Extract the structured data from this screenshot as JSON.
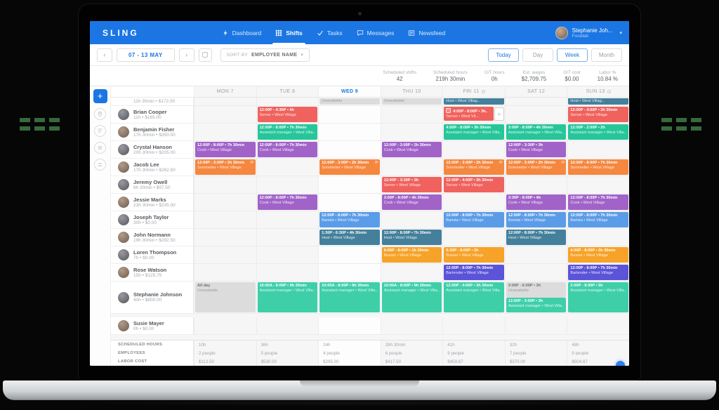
{
  "brand": "SLING",
  "nav": {
    "items": [
      {
        "label": "Dashboard",
        "icon": "dashboard-icon",
        "active": false
      },
      {
        "label": "Shifts",
        "icon": "shifts-icon",
        "active": true
      },
      {
        "label": "Tasks",
        "icon": "tasks-icon",
        "active": false
      },
      {
        "label": "Messages",
        "icon": "messages-icon",
        "active": false
      },
      {
        "label": "Newsfeed",
        "icon": "newsfeed-icon",
        "active": false
      }
    ],
    "user": {
      "name": "Stephanie Joh...",
      "org": "Foodlab"
    }
  },
  "toolbar": {
    "prev": "‹",
    "next": "›",
    "date_range": "07 - 13 MAY",
    "sort_by": "SORT BY",
    "sort_value": "EMPLOYEE NAME",
    "sort_caret": "▾",
    "views": [
      {
        "label": "Today",
        "accent": true,
        "active": false
      },
      {
        "label": "Day",
        "accent": false,
        "active": false
      },
      {
        "label": "Week",
        "accent": true,
        "active": true
      },
      {
        "label": "Month",
        "accent": false,
        "active": false
      }
    ]
  },
  "stats": [
    {
      "label": "Scheduled shifts",
      "value": "42"
    },
    {
      "label": "Scheduled hours",
      "value": "219h 30min"
    },
    {
      "label": "O/T hours",
      "value": "0h"
    },
    {
      "label": "Est. wages",
      "value": "$2,709.75"
    },
    {
      "label": "O/T cost",
      "value": "$0.00"
    },
    {
      "label": "Labor %",
      "value": "10.84 %"
    }
  ],
  "days": [
    {
      "label": "MON 7",
      "active": false,
      "badge": false
    },
    {
      "label": "TUE 8",
      "active": false,
      "badge": false
    },
    {
      "label": "WED 9",
      "active": true,
      "badge": false
    },
    {
      "label": "THU 10",
      "active": false,
      "badge": false
    },
    {
      "label": "FRI 11",
      "active": false,
      "badge": true
    },
    {
      "label": "SAT 12",
      "active": false,
      "badge": false
    },
    {
      "label": "SUN 13",
      "active": false,
      "badge": true
    }
  ],
  "palette": {
    "server": "#f0625d",
    "cook": "#a163c8",
    "sommelier": "#f5873f",
    "barista": "#5b9ce8",
    "host": "#44809b",
    "busser": "#f7a228",
    "bartender": "#5b53d8",
    "manager": "#26c69a",
    "manager_light": "#3ecfa9",
    "unavailable": "#dcdcdc"
  },
  "schedule": {
    "partial_row": {
      "summary": "11h 30min • $172.50",
      "shifts": [
        {
          "day": 2,
          "color": "unavailable",
          "l2": "Unavailable"
        },
        {
          "day": 3,
          "color": "unavailable",
          "l2": "Unavailable"
        },
        {
          "day": 4,
          "color": "host",
          "l2": "Host • West Villag..."
        },
        {
          "day": 6,
          "color": "host",
          "l2": "Host • West Villag..."
        }
      ]
    },
    "employees": [
      {
        "name": "Brian Cooper",
        "sub": "11h • $165.00",
        "shifts": [
          {
            "day": 1,
            "color": "server",
            "l1": "12:00P - 4:30P • 4h",
            "l2": "Server • West Village"
          },
          {
            "day": 4,
            "color": "server",
            "l1": "4:00P - 8:00P • 3h..",
            "l2": "Server • West Vil...",
            "checkbox": true,
            "plus": true
          },
          {
            "day": 6,
            "color": "server",
            "l1": "12:00P - 4:00P • 3h 30min",
            "l2": "Server • West Village"
          }
        ]
      },
      {
        "name": "Benjamin Fisher",
        "sub": "17h 30min • $350.00",
        "shifts": [
          {
            "day": 1,
            "color": "manager",
            "l1": "12:00P - 8:00P • 7h 30min",
            "l2": "Assistant manager • West Villa..."
          },
          {
            "day": 4,
            "color": "manager",
            "l1": "4:00P - 8:00P • 3h 30min",
            "l2": "Assistant manager • West Villa..."
          },
          {
            "day": 5,
            "color": "manager",
            "l1": "3:00P - 8:00P • 4h 30min",
            "l2": "Assistant manager • West Villa..."
          },
          {
            "day": 6,
            "color": "manager",
            "l1": "12:00P - 2:00P • 2h",
            "l2": "Assistant manager • West Villa..."
          }
        ]
      },
      {
        "name": "Crystal Hanson",
        "sub": "20h 30min • $205.00",
        "shifts": [
          {
            "day": 0,
            "color": "cook",
            "l1": "12:00P - 8:00P • 7h 30min",
            "l2": "Cook • West Village"
          },
          {
            "day": 1,
            "color": "cook",
            "l1": "12:00P - 8:00P • 7h 30min",
            "l2": "Cook • West Village"
          },
          {
            "day": 3,
            "color": "cook",
            "l1": "12:00P - 3:00P • 2h 30min",
            "l2": "Cook • West Village"
          },
          {
            "day": 5,
            "color": "cook",
            "l1": "12:00P - 3:30P • 3h",
            "l2": "Cook • West Village"
          }
        ]
      },
      {
        "name": "Jacob Lee",
        "sub": "17h 30min • $262.50",
        "shifts": [
          {
            "day": 0,
            "color": "sommelier",
            "l1": "12:00P - 3:00P • 2h 30min",
            "l2": "Sommelier • West Village",
            "repeat": true
          },
          {
            "day": 2,
            "color": "sommelier",
            "l1": "12:00P - 3:00P • 2h 30min",
            "l2": "Sommelier • West Village",
            "repeat": true
          },
          {
            "day": 4,
            "color": "sommelier",
            "l1": "12:00P - 3:00P • 2h 30min",
            "l2": "Sommelier • West Village",
            "repeat": true
          },
          {
            "day": 5,
            "color": "sommelier",
            "l1": "12:00P - 3:00P • 2h 30min",
            "l2": "Sommelier • West Village",
            "repeat": true
          },
          {
            "day": 6,
            "color": "sommelier",
            "l1": "12:00P - 8:00P • 7h 30min",
            "l2": "Sommelier • West Village"
          }
        ]
      },
      {
        "name": "Jeremy Owell",
        "sub": "6h 30min • $97.50",
        "shifts": [
          {
            "day": 3,
            "color": "server",
            "l1": "12:00P - 3:30P • 3h",
            "l2": "Server • West Village"
          },
          {
            "day": 4,
            "color": "server",
            "l1": "12:00P - 4:00P • 3h 30min",
            "l2": "Server • West Village"
          }
        ]
      },
      {
        "name": "Jessie Marks",
        "sub": "23h 30min • $235.00",
        "shifts": [
          {
            "day": 1,
            "color": "cook",
            "l1": "12:00P - 8:00P • 7h 30min",
            "l2": "Cook • West Village"
          },
          {
            "day": 3,
            "color": "cook",
            "l1": "3:00P - 8:00P • 4h 30min",
            "l2": "Cook • West Village"
          },
          {
            "day": 5,
            "color": "cook",
            "l1": "3:30P - 8:00P • 4h",
            "l2": "Cook • West Village"
          },
          {
            "day": 6,
            "color": "cook",
            "l1": "12:00P - 8:00P • 7h 30min",
            "l2": "Cook • West Village"
          }
        ]
      },
      {
        "name": "Joseph Taylor",
        "sub": "30h • $0.00",
        "shifts": [
          {
            "day": 2,
            "color": "barista",
            "l1": "12:00P - 8:00P • 7h 30min",
            "l2": "Barista • West Village"
          },
          {
            "day": 4,
            "color": "barista",
            "l1": "12:00P - 8:00P • 7h 30min",
            "l2": "Barista • West Village"
          },
          {
            "day": 5,
            "color": "barista",
            "l1": "12:00P - 8:00P • 7h 30min",
            "l2": "Barista • West Village"
          },
          {
            "day": 6,
            "color": "barista",
            "l1": "12:00P - 8:00P • 7h 30min",
            "l2": "Barista • West Village"
          }
        ]
      },
      {
        "name": "John Normann",
        "sub": "19h 30min • $292.50",
        "shifts": [
          {
            "day": 2,
            "color": "host",
            "l1": "1:30P - 6:30P • 4h 30min",
            "l2": "Host • West Village"
          },
          {
            "day": 3,
            "color": "host",
            "l1": "12:00P - 8:00P • 7h 30min",
            "l2": "Host • West Village"
          },
          {
            "day": 5,
            "color": "host",
            "l1": "12:00P - 8:00P • 7h 30min",
            "l2": "Host • West Village"
          }
        ]
      },
      {
        "name": "Loren Thompson",
        "sub": "7h • $0.00",
        "shifts": [
          {
            "day": 3,
            "color": "busser",
            "l1": "6:00P - 8:00P • 1h 30min",
            "l2": "Busser • West Village"
          },
          {
            "day": 4,
            "color": "busser",
            "l1": "5:30P - 8:00P • 2h",
            "l2": "Busser • West Village"
          },
          {
            "day": 6,
            "color": "busser",
            "l1": "4:00P - 8:00P • 3h 30min",
            "l2": "Busser • West Village"
          }
        ]
      },
      {
        "name": "Rose Watson",
        "sub": "15h • $125.75",
        "shifts": [
          {
            "day": 4,
            "color": "bartender",
            "l1": "12:00P - 8:00P • 7h 30min",
            "l2": "Bartender • West Village"
          },
          {
            "day": 6,
            "color": "bartender",
            "l1": "12:00P - 8:00P • 7h 30min",
            "l2": "Bartender • West Village"
          }
        ]
      },
      {
        "name": "Stephanie Johnson",
        "sub": "40h • $800.00",
        "tall": true,
        "shifts": [
          {
            "day": 0,
            "color": "unavailable",
            "l1": "All day",
            "l2": "Unavailable"
          },
          {
            "day": 1,
            "color": "manager_light",
            "l1": "10:00A - 8:00P • 9h 30min",
            "l2": "Assistant manager • West Villa..."
          },
          {
            "day": 2,
            "color": "manager_light",
            "l1": "10:00A - 8:00P • 9h 30min",
            "l2": "Assistant manager • West Villa..."
          },
          {
            "day": 3,
            "color": "manager_light",
            "l1": "10:00A - 8:00P • 9h 30min",
            "l2": "Assistant manager • West Villa..."
          },
          {
            "day": 4,
            "color": "manager_light",
            "l1": "12:00P - 4:00P • 3h 30min",
            "l2": "Assistant manager • West Villa..."
          },
          {
            "day": 5,
            "color": "unavailable",
            "l1": "3:00P - 6:00P • 3h",
            "l2": "Unavailable"
          },
          {
            "day": 5,
            "color": "manager_light",
            "l1": "12:00P - 3:00P • 3h",
            "l2": "Assistant manager • West Villa..."
          },
          {
            "day": 6,
            "color": "manager_light",
            "l1": "2:00P - 8:00P • 5h",
            "l2": "Assistant manager • West Villa..."
          }
        ]
      },
      {
        "name": "Susie Mayer",
        "sub": "0h • $0.00",
        "gap": true,
        "shifts": []
      }
    ],
    "summary_rows": [
      {
        "label": "SCHEDULED HOURS",
        "values": [
          "10h",
          "36h",
          "24h",
          "28h 30min",
          "41h",
          "32h",
          "48h"
        ]
      },
      {
        "label": "EMPLOYEES",
        "values": [
          "2 people",
          "5 people",
          "4 people",
          "6 people",
          "9 people",
          "7 people",
          "9 people"
        ]
      },
      {
        "label": "LABOR COST",
        "values": [
          "$112.50",
          "$530.00",
          "$295.00",
          "$417.50",
          "$459.87",
          "$370.00",
          "$504.87"
        ]
      }
    ]
  }
}
